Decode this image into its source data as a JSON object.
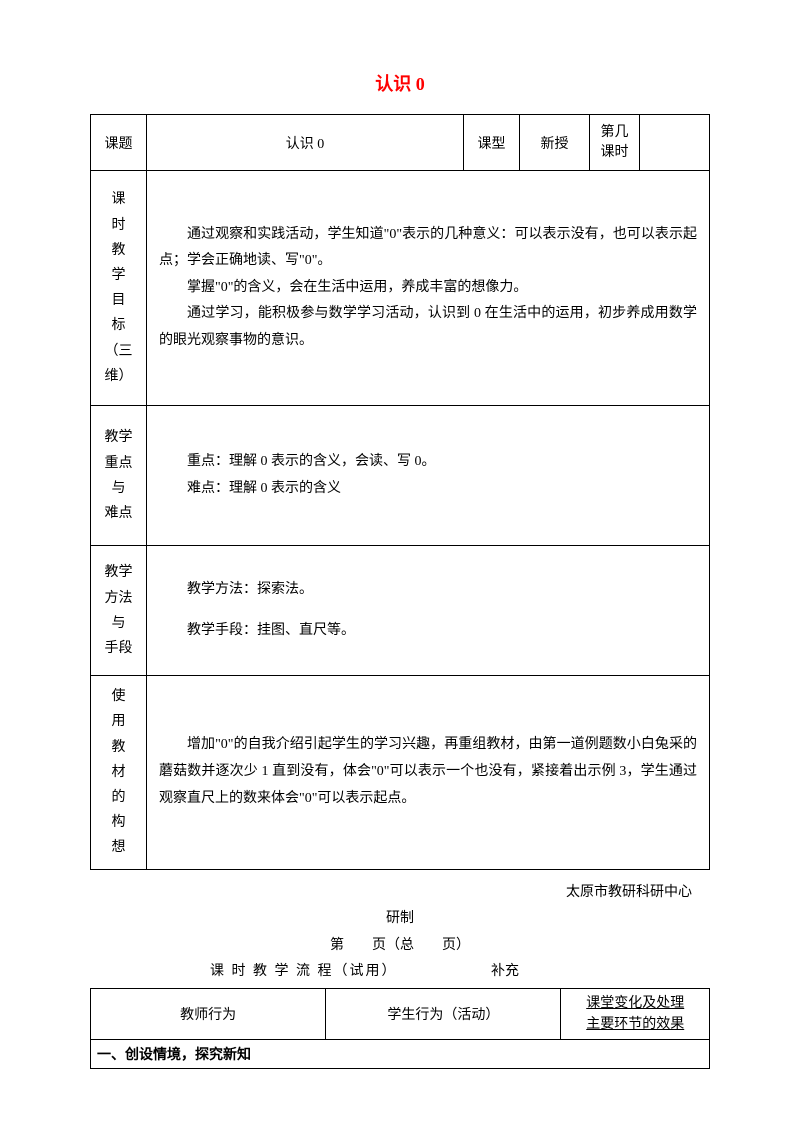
{
  "title": "认识 0",
  "header": {
    "col1_label": "课题",
    "col1_value": "认识 0",
    "col2_label": "课型",
    "col2_value": "新授",
    "col3_label": "第几\n课时",
    "col3_value": ""
  },
  "objectives": {
    "label_lines": [
      "课",
      "时",
      "教",
      "学",
      "目",
      "标",
      "（三维）"
    ],
    "p1": "通过观察和实践活动，学生知道\"0\"表示的几种意义：可以表示没有，也可以表示起点；学会正确地读、写\"0\"。",
    "p2": "掌握\"0\"的含义，会在生活中运用，养成丰富的想像力。",
    "p3": "通过学习，能积极参与数学学习活动，认识到 0 在生活中的运用，初步养成用数学的眼光观察事物的意识。"
  },
  "keypoints": {
    "label_lines": [
      "教学",
      "重点",
      "与",
      "难点"
    ],
    "p1": "重点：理解 0 表示的含义，会读、写 0。",
    "p2": "难点：理解 0 表示的含义"
  },
  "methods": {
    "label_lines": [
      "教学",
      "方法",
      "与",
      "手段"
    ],
    "p1": "教学方法：探索法。",
    "p2": "教学手段：挂图、直尺等。"
  },
  "materials": {
    "label_lines": [
      "使",
      "用",
      "教",
      "材",
      "的",
      "构",
      "想"
    ],
    "p1": "增加\"0\"的自我介绍引起学生的学习兴趣，再重组教材，由第一道例题数小白兔采的蘑菇数并逐次少 1 直到没有，体会\"0\"可以表示一个也没有，紧接着出示例 3，学生通过观察直尺上的数来体会\"0\"可以表示起点。"
  },
  "footer": {
    "org": "太原市教研科研中心",
    "made": "研制",
    "page": "第　　页（总　　页）",
    "flow_label": "课 时 教 学 流 程（试用）",
    "supp": "补充"
  },
  "flow": {
    "col1": "教师行为",
    "col2": "学生行为（活动）",
    "col3_l1": "课堂变化及处理",
    "col3_l2": "主要环节的效果",
    "section": "一、创设情境，探究新知"
  },
  "style": {
    "title_color": "#ff0000",
    "border_color": "#000000",
    "text_color": "#000000",
    "background": "#ffffff",
    "font_family": "SimSun",
    "base_fontsize": 14,
    "title_fontsize": 18,
    "col_widths_main": [
      56,
      null,
      56,
      70,
      50,
      70
    ],
    "col_widths_flow": [
      "38%",
      "38%",
      "24%"
    ]
  }
}
